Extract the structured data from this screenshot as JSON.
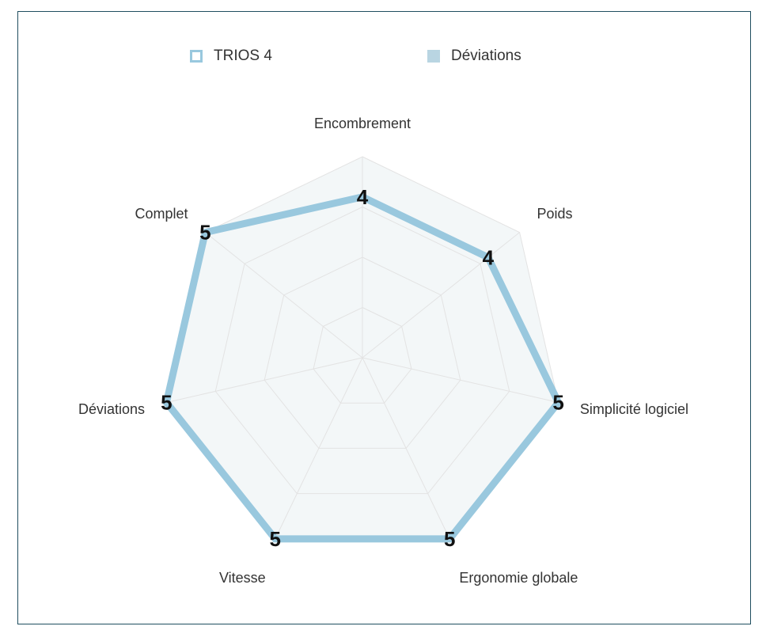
{
  "chart_data": {
    "type": "radar",
    "axes": [
      "Encombrement",
      "Poids",
      "Simplicité logiciel",
      "Ergonomie globale",
      "Vitesse",
      "Déviations",
      "Complet"
    ],
    "series": [
      {
        "name": "TRIOS 4",
        "values": [
          4,
          4,
          5,
          5,
          5,
          5,
          5
        ],
        "value_labels": [
          "4",
          "4",
          "5",
          "5",
          "5",
          "5",
          "5"
        ]
      }
    ],
    "scale_max": 5,
    "rings": 4,
    "legend": [
      {
        "label": "TRIOS 4",
        "style": "outline"
      },
      {
        "label": "Déviations",
        "style": "filled"
      }
    ],
    "legend_position": "top",
    "colors": {
      "series": "#99c8de",
      "fill": "#f3f7f8",
      "grid": "#e3e3e3",
      "legend_fill": "#b9d5e2"
    }
  }
}
